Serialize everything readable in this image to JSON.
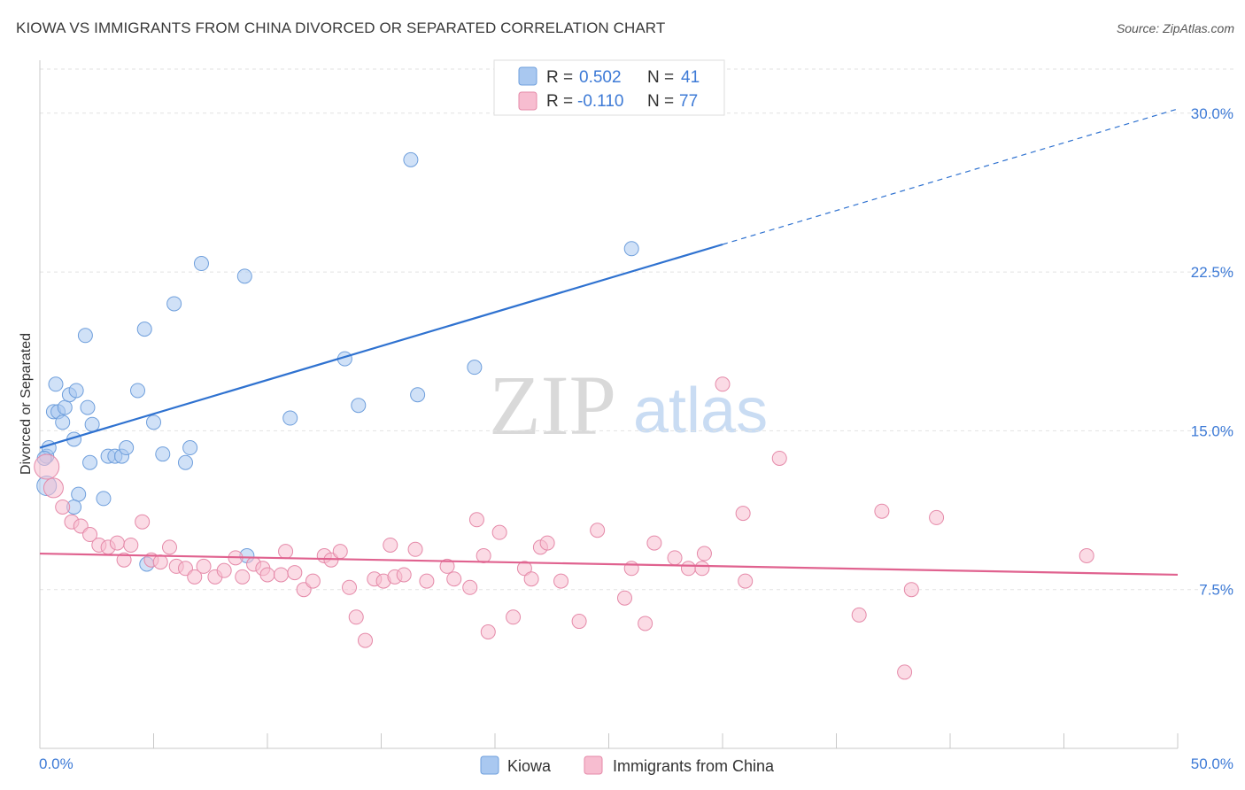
{
  "title": "KIOWA VS IMMIGRANTS FROM CHINA DIVORCED OR SEPARATED CORRELATION CHART",
  "source": "Source: ZipAtlas.com",
  "watermark": {
    "zip": "ZIP",
    "atlas": "atlas"
  },
  "chart_data": {
    "type": "scatter",
    "xlabel": "",
    "ylabel": "Divorced or Separated",
    "xlim": [
      0,
      50
    ],
    "ylim": [
      0,
      32.5
    ],
    "x_tick_labels": {
      "min": "0.0%",
      "max": "50.0%"
    },
    "y_ticks": [
      {
        "value": 7.5,
        "label": "7.5%"
      },
      {
        "value": 15.0,
        "label": "15.0%"
      },
      {
        "value": 22.5,
        "label": "22.5%"
      },
      {
        "value": 30.0,
        "label": "30.0%"
      }
    ],
    "grid": "horizontal dashed",
    "legend": {
      "placement": "top-center",
      "rows": [
        {
          "r_label": "R = ",
          "r_value": "0.502",
          "n_label": "N = ",
          "n_value": "41"
        },
        {
          "r_label": "R = ",
          "r_value": "-0.110",
          "n_label": "N = ",
          "n_value": "77"
        }
      ]
    },
    "series": [
      {
        "name": "Kiowa",
        "color": "#a9c8f0",
        "stroke": "#6f9fdc",
        "trend_color": "#2f72d0",
        "trend": {
          "x0": 0,
          "y0": 14.2,
          "x1": 30,
          "y1": 23.8,
          "dash_to_x": 50,
          "dash_to_y": 30.2
        },
        "points": [
          [
            0.3,
            13.8
          ],
          [
            0.4,
            14.2
          ],
          [
            0.3,
            12.4
          ],
          [
            0.7,
            17.2
          ],
          [
            0.6,
            15.9
          ],
          [
            0.8,
            15.9
          ],
          [
            1.0,
            15.4
          ],
          [
            1.1,
            16.1
          ],
          [
            1.3,
            16.7
          ],
          [
            1.6,
            16.9
          ],
          [
            1.5,
            14.6
          ],
          [
            1.7,
            12.0
          ],
          [
            2.0,
            19.5
          ],
          [
            2.1,
            16.1
          ],
          [
            2.2,
            13.5
          ],
          [
            2.3,
            15.3
          ],
          [
            1.5,
            11.4
          ],
          [
            2.8,
            11.8
          ],
          [
            3.0,
            13.8
          ],
          [
            3.3,
            13.8
          ],
          [
            3.6,
            13.8
          ],
          [
            3.8,
            14.2
          ],
          [
            4.3,
            16.9
          ],
          [
            4.6,
            19.8
          ],
          [
            4.7,
            8.7
          ],
          [
            5.0,
            15.4
          ],
          [
            5.4,
            13.9
          ],
          [
            5.9,
            21.0
          ],
          [
            6.4,
            13.5
          ],
          [
            6.6,
            14.2
          ],
          [
            7.1,
            22.9
          ],
          [
            9.0,
            22.3
          ],
          [
            9.1,
            9.1
          ],
          [
            11.0,
            15.6
          ],
          [
            13.4,
            18.4
          ],
          [
            14.0,
            16.2
          ],
          [
            16.3,
            27.8
          ],
          [
            16.6,
            16.7
          ],
          [
            19.1,
            18.0
          ],
          [
            26.0,
            23.6
          ],
          [
            0.2,
            13.7
          ]
        ]
      },
      {
        "name": "Immigrants from China",
        "color": "#f7bdd0",
        "stroke": "#e58aa9",
        "trend_color": "#e0628f",
        "trend": {
          "x0": 0,
          "y0": 9.2,
          "x1": 50,
          "y1": 8.2
        },
        "points": [
          [
            0.3,
            13.3
          ],
          [
            0.6,
            12.3
          ],
          [
            1.0,
            11.4
          ],
          [
            1.4,
            10.7
          ],
          [
            1.8,
            10.5
          ],
          [
            2.2,
            10.1
          ],
          [
            2.6,
            9.6
          ],
          [
            3.0,
            9.5
          ],
          [
            3.4,
            9.7
          ],
          [
            3.7,
            8.9
          ],
          [
            4.0,
            9.6
          ],
          [
            4.5,
            10.7
          ],
          [
            4.9,
            8.9
          ],
          [
            5.3,
            8.8
          ],
          [
            5.7,
            9.5
          ],
          [
            6.0,
            8.6
          ],
          [
            6.4,
            8.5
          ],
          [
            6.8,
            8.1
          ],
          [
            7.2,
            8.6
          ],
          [
            7.7,
            8.1
          ],
          [
            8.1,
            8.4
          ],
          [
            8.6,
            9.0
          ],
          [
            8.9,
            8.1
          ],
          [
            9.4,
            8.7
          ],
          [
            9.8,
            8.5
          ],
          [
            10.0,
            8.2
          ],
          [
            10.6,
            8.2
          ],
          [
            10.8,
            9.3
          ],
          [
            11.2,
            8.3
          ],
          [
            11.6,
            7.5
          ],
          [
            12.0,
            7.9
          ],
          [
            12.5,
            9.1
          ],
          [
            12.8,
            8.9
          ],
          [
            13.2,
            9.3
          ],
          [
            13.6,
            7.6
          ],
          [
            13.9,
            6.2
          ],
          [
            14.3,
            5.1
          ],
          [
            14.7,
            8.0
          ],
          [
            15.1,
            7.9
          ],
          [
            15.4,
            9.6
          ],
          [
            15.6,
            8.1
          ],
          [
            16.0,
            8.2
          ],
          [
            16.5,
            9.4
          ],
          [
            17.0,
            7.9
          ],
          [
            17.9,
            8.6
          ],
          [
            18.2,
            8.0
          ],
          [
            18.9,
            7.6
          ],
          [
            19.2,
            10.8
          ],
          [
            19.5,
            9.1
          ],
          [
            19.7,
            5.5
          ],
          [
            20.2,
            10.2
          ],
          [
            20.8,
            6.2
          ],
          [
            21.3,
            8.5
          ],
          [
            21.6,
            8.0
          ],
          [
            22.0,
            9.5
          ],
          [
            22.3,
            9.7
          ],
          [
            22.9,
            7.9
          ],
          [
            23.7,
            6.0
          ],
          [
            24.5,
            10.3
          ],
          [
            25.7,
            7.1
          ],
          [
            26.0,
            8.5
          ],
          [
            26.6,
            5.9
          ],
          [
            27.0,
            9.7
          ],
          [
            27.9,
            9.0
          ],
          [
            28.5,
            8.5
          ],
          [
            29.1,
            8.5
          ],
          [
            29.2,
            9.2
          ],
          [
            30.0,
            17.2
          ],
          [
            30.9,
            11.1
          ],
          [
            31.0,
            7.9
          ],
          [
            32.5,
            13.7
          ],
          [
            36.0,
            6.3
          ],
          [
            37.0,
            11.2
          ],
          [
            38.0,
            3.6
          ],
          [
            38.3,
            7.5
          ],
          [
            39.4,
            10.9
          ],
          [
            46.0,
            9.1
          ]
        ]
      }
    ]
  }
}
